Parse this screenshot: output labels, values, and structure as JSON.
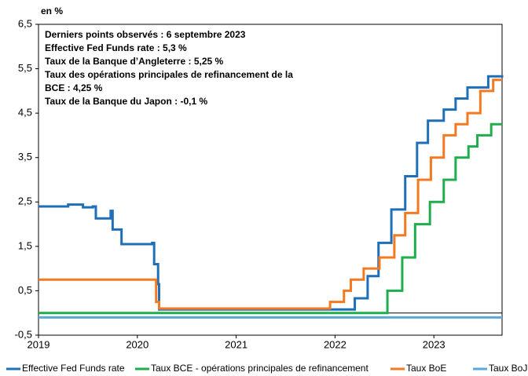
{
  "chart_data": {
    "type": "line",
    "step": true,
    "y_label": "en %",
    "annotations": [
      "Derniers points observés : 6 septembre 2023",
      "Effective Fed Funds rate : 5,3 %",
      "Taux de la Banque d’Angleterre : 5,25 %",
      "Taux des opérations principales de refinancement de la",
      "BCE : 4,25 %",
      "Taux de la Banque du Japon : -0,1 %"
    ],
    "xlim": [
      2019,
      2023.69
    ],
    "xticks": [
      2019,
      2020,
      2021,
      2022,
      2023
    ],
    "ylim": [
      -0.5,
      6.5
    ],
    "yticks": [
      {
        "value": -0.5,
        "label": "-0,5"
      },
      {
        "value": 0.5,
        "label": "0,5"
      },
      {
        "value": 1.5,
        "label": "1,5"
      },
      {
        "value": 2.5,
        "label": "2,5"
      },
      {
        "value": 3.5,
        "label": "3,5"
      },
      {
        "value": 4.5,
        "label": "4,5"
      },
      {
        "value": 5.5,
        "label": "5,5"
      },
      {
        "value": 6.5,
        "label": "6,5"
      }
    ],
    "zero_line": true,
    "series": [
      {
        "name": "Effective Fed Funds rate",
        "color": "#1f6fb8",
        "x": [
          2019,
          2019.3,
          2019.45,
          2019.55,
          2019.58,
          2019.72,
          2019.73,
          2019.75,
          2019.84,
          2020.15,
          2020.17,
          2020.21,
          2020.22,
          2022.2,
          2022.33,
          2022.44,
          2022.57,
          2022.71,
          2022.83,
          2022.94,
          2023.1,
          2023.22,
          2023.34,
          2023.55,
          2023.69
        ],
        "values": [
          2.4,
          2.44,
          2.38,
          2.4,
          2.13,
          2.13,
          2.3,
          1.88,
          1.55,
          1.58,
          1.1,
          0.65,
          0.08,
          0.33,
          0.83,
          1.58,
          2.33,
          3.08,
          3.83,
          4.33,
          4.58,
          4.83,
          5.08,
          5.33,
          5.3
        ]
      },
      {
        "name": "Taux BCE - opérations principales de refinancement",
        "color": "#1fae4b",
        "x": [
          2019,
          2022.53,
          2022.68,
          2022.81,
          2022.96,
          2023.1,
          2023.22,
          2023.35,
          2023.44,
          2023.58,
          2023.69
        ],
        "values": [
          0,
          0.5,
          1.25,
          2.0,
          2.5,
          3.0,
          3.5,
          3.75,
          4.0,
          4.25,
          4.25
        ]
      },
      {
        "name": "Taux BoE",
        "color": "#f47920",
        "x": [
          2019,
          2020.19,
          2020.22,
          2021.95,
          2022.09,
          2022.16,
          2022.29,
          2022.45,
          2022.6,
          2022.71,
          2022.84,
          2022.97,
          2023.1,
          2023.22,
          2023.34,
          2023.47,
          2023.6,
          2023.69
        ],
        "values": [
          0.75,
          0.25,
          0.1,
          0.25,
          0.5,
          0.75,
          1.0,
          1.25,
          1.75,
          2.25,
          3.0,
          3.5,
          4.0,
          4.25,
          4.5,
          5.0,
          5.25,
          5.25
        ]
      },
      {
        "name": "Taux BoJ",
        "color": "#5aa7dc",
        "x": [
          2019,
          2023.69
        ],
        "values": [
          -0.1,
          -0.1
        ]
      }
    ]
  }
}
